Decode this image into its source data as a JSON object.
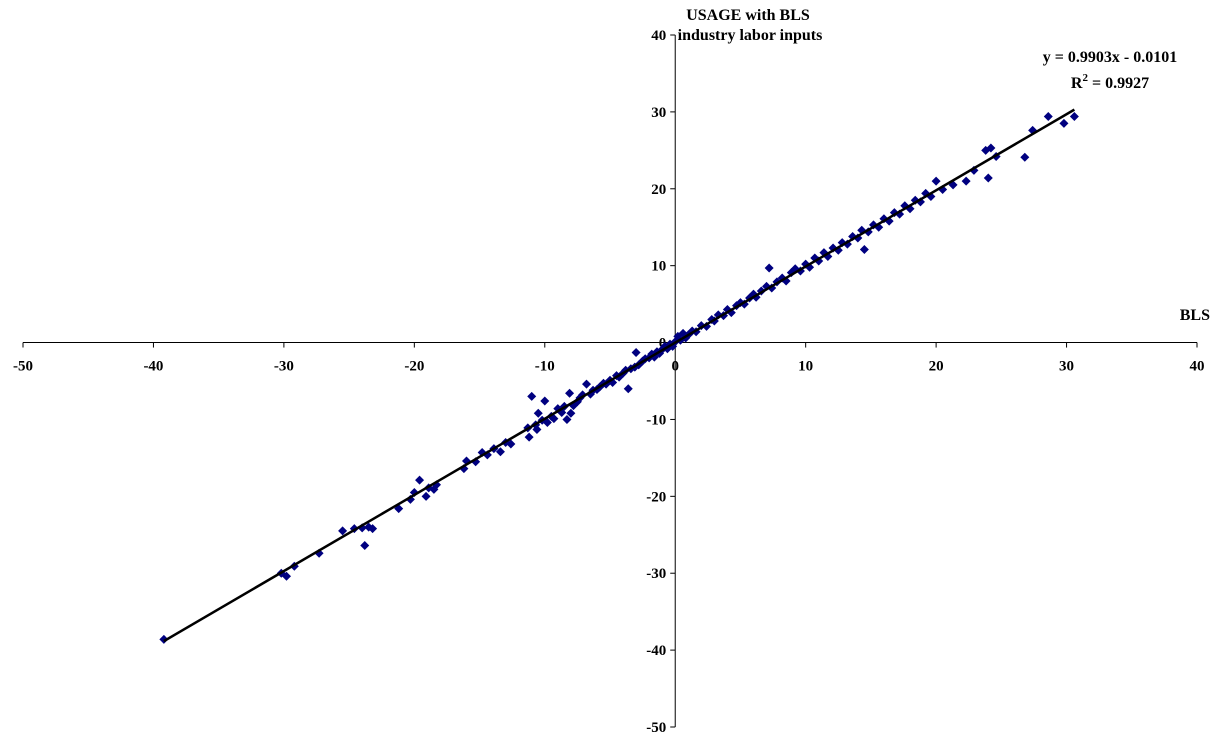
{
  "chart_data": {
    "type": "scatter",
    "title": "",
    "xlabel": "BLS",
    "ylabel": "USAGE with BLS industry labor inputs",
    "ylabel_lines": [
      "USAGE with BLS",
      "industry labor inputs"
    ],
    "xlim": [
      -50,
      40
    ],
    "ylim": [
      -50,
      40
    ],
    "x_ticks": [
      "-50",
      "-40",
      "-30",
      "-20",
      "-10",
      "0",
      "10",
      "20",
      "30",
      "40"
    ],
    "y_ticks": [
      "-50",
      "-40",
      "-30",
      "-20",
      "-10",
      "0",
      "10",
      "20",
      "30",
      "40"
    ],
    "grid": false,
    "legend": "none",
    "marker": "diamond",
    "marker_color": "#000080",
    "trendline": {
      "slope": 0.9903,
      "intercept": -0.0101,
      "x_range": [
        -39.2,
        30.6
      ],
      "equation": "y = 0.9903x - 0.0101",
      "r2_label": "R",
      "r2_sup": "2",
      "r2_value": " = 0.9927"
    },
    "series": [
      {
        "points": [
          [
            -39.2,
            -38.6
          ],
          [
            -30.2,
            -30.0
          ],
          [
            -29.8,
            -30.4
          ],
          [
            -29.2,
            -29.1
          ],
          [
            -27.3,
            -27.4
          ],
          [
            -25.5,
            -24.5
          ],
          [
            -24.6,
            -24.2
          ],
          [
            -24.0,
            -24.1
          ],
          [
            -23.8,
            -26.4
          ],
          [
            -23.5,
            -24.0
          ],
          [
            -23.2,
            -24.2
          ],
          [
            -21.2,
            -21.6
          ],
          [
            -20.3,
            -20.4
          ],
          [
            -20.0,
            -19.5
          ],
          [
            -19.6,
            -17.9
          ],
          [
            -19.1,
            -20.0
          ],
          [
            -18.9,
            -18.9
          ],
          [
            -18.5,
            -19.1
          ],
          [
            -18.3,
            -18.5
          ],
          [
            -16.2,
            -16.4
          ],
          [
            -16.0,
            -15.4
          ],
          [
            -15.3,
            -15.5
          ],
          [
            -14.8,
            -14.3
          ],
          [
            -14.4,
            -14.6
          ],
          [
            -13.9,
            -13.8
          ],
          [
            -13.4,
            -14.2
          ],
          [
            -13.0,
            -13.0
          ],
          [
            -12.6,
            -13.2
          ],
          [
            -11.3,
            -11.1
          ],
          [
            -11.2,
            -12.3
          ],
          [
            -11.0,
            -7.0
          ],
          [
            -10.7,
            -10.7
          ],
          [
            -10.6,
            -11.3
          ],
          [
            -10.5,
            -9.2
          ],
          [
            -10.2,
            -10.1
          ],
          [
            -10.0,
            -7.6
          ],
          [
            -9.8,
            -10.4
          ],
          [
            -9.5,
            -9.6
          ],
          [
            -9.3,
            -9.9
          ],
          [
            -9.0,
            -8.6
          ],
          [
            -8.7,
            -9.1
          ],
          [
            -8.5,
            -8.3
          ],
          [
            -8.3,
            -10.0
          ],
          [
            -8.1,
            -6.6
          ],
          [
            -8.0,
            -9.2
          ],
          [
            -7.8,
            -8.2
          ],
          [
            -7.5,
            -7.7
          ],
          [
            -7.3,
            -7.2
          ],
          [
            -7.1,
            -6.8
          ],
          [
            -6.8,
            -5.4
          ],
          [
            -6.5,
            -6.7
          ],
          [
            -6.3,
            -6.2
          ],
          [
            -6.0,
            -6.1
          ],
          [
            -5.8,
            -5.8
          ],
          [
            -5.5,
            -5.3
          ],
          [
            -5.3,
            -5.4
          ],
          [
            -5.0,
            -4.9
          ],
          [
            -4.8,
            -5.2
          ],
          [
            -4.5,
            -4.3
          ],
          [
            -4.3,
            -4.5
          ],
          [
            -4.0,
            -4.0
          ],
          [
            -3.8,
            -3.6
          ],
          [
            -3.6,
            -6.0
          ],
          [
            -3.4,
            -3.4
          ],
          [
            -3.1,
            -3.2
          ],
          [
            -3.0,
            -1.3
          ],
          [
            -2.8,
            -2.9
          ],
          [
            -2.5,
            -2.4
          ],
          [
            -2.3,
            -2.1
          ],
          [
            -2.0,
            -2.0
          ],
          [
            -1.8,
            -1.5
          ],
          [
            -1.6,
            -1.9
          ],
          [
            -1.4,
            -1.2
          ],
          [
            -1.2,
            -1.4
          ],
          [
            -1.0,
            -0.9
          ],
          [
            -0.8,
            -0.5
          ],
          [
            -0.6,
            -0.8
          ],
          [
            -0.4,
            -0.2
          ],
          [
            -0.2,
            -0.5
          ],
          [
            0.0,
            0.1
          ],
          [
            0.2,
            0.8
          ],
          [
            0.4,
            0.3
          ],
          [
            0.6,
            1.2
          ],
          [
            0.8,
            0.6
          ],
          [
            1.0,
            1.0
          ],
          [
            1.3,
            1.5
          ],
          [
            1.6,
            1.4
          ],
          [
            2.0,
            2.2
          ],
          [
            2.4,
            2.1
          ],
          [
            2.8,
            3.0
          ],
          [
            3.0,
            2.8
          ],
          [
            3.3,
            3.6
          ],
          [
            3.7,
            3.5
          ],
          [
            4.0,
            4.3
          ],
          [
            4.3,
            3.9
          ],
          [
            4.7,
            4.8
          ],
          [
            5.0,
            5.2
          ],
          [
            5.3,
            5.0
          ],
          [
            5.7,
            5.8
          ],
          [
            6.0,
            6.3
          ],
          [
            6.2,
            5.9
          ],
          [
            6.6,
            6.7
          ],
          [
            7.0,
            7.3
          ],
          [
            7.2,
            9.7
          ],
          [
            7.4,
            7.1
          ],
          [
            7.8,
            7.9
          ],
          [
            8.2,
            8.4
          ],
          [
            8.5,
            8.0
          ],
          [
            8.9,
            9.1
          ],
          [
            9.2,
            9.6
          ],
          [
            9.6,
            9.3
          ],
          [
            10.0,
            10.2
          ],
          [
            10.3,
            9.8
          ],
          [
            10.7,
            11.0
          ],
          [
            11.0,
            10.6
          ],
          [
            11.4,
            11.7
          ],
          [
            11.7,
            11.2
          ],
          [
            12.1,
            12.3
          ],
          [
            12.5,
            12.0
          ],
          [
            12.8,
            13.0
          ],
          [
            13.2,
            12.8
          ],
          [
            13.6,
            13.8
          ],
          [
            14.0,
            13.6
          ],
          [
            14.3,
            14.6
          ],
          [
            14.5,
            12.1
          ],
          [
            14.8,
            14.4
          ],
          [
            15.2,
            15.3
          ],
          [
            15.6,
            15.0
          ],
          [
            16.0,
            16.1
          ],
          [
            16.4,
            15.8
          ],
          [
            16.8,
            16.9
          ],
          [
            17.2,
            16.7
          ],
          [
            17.6,
            17.8
          ],
          [
            18.0,
            17.4
          ],
          [
            18.4,
            18.5
          ],
          [
            18.8,
            18.3
          ],
          [
            19.2,
            19.4
          ],
          [
            19.6,
            19.0
          ],
          [
            20.0,
            21.0
          ],
          [
            20.5,
            19.9
          ],
          [
            21.3,
            20.5
          ],
          [
            22.3,
            21.0
          ],
          [
            22.9,
            22.4
          ],
          [
            23.8,
            25.0
          ],
          [
            24.0,
            21.4
          ],
          [
            24.2,
            25.3
          ],
          [
            24.6,
            24.2
          ],
          [
            26.8,
            24.1
          ],
          [
            27.4,
            27.6
          ],
          [
            28.6,
            29.4
          ],
          [
            29.8,
            28.5
          ],
          [
            30.6,
            29.4
          ]
        ]
      }
    ]
  }
}
